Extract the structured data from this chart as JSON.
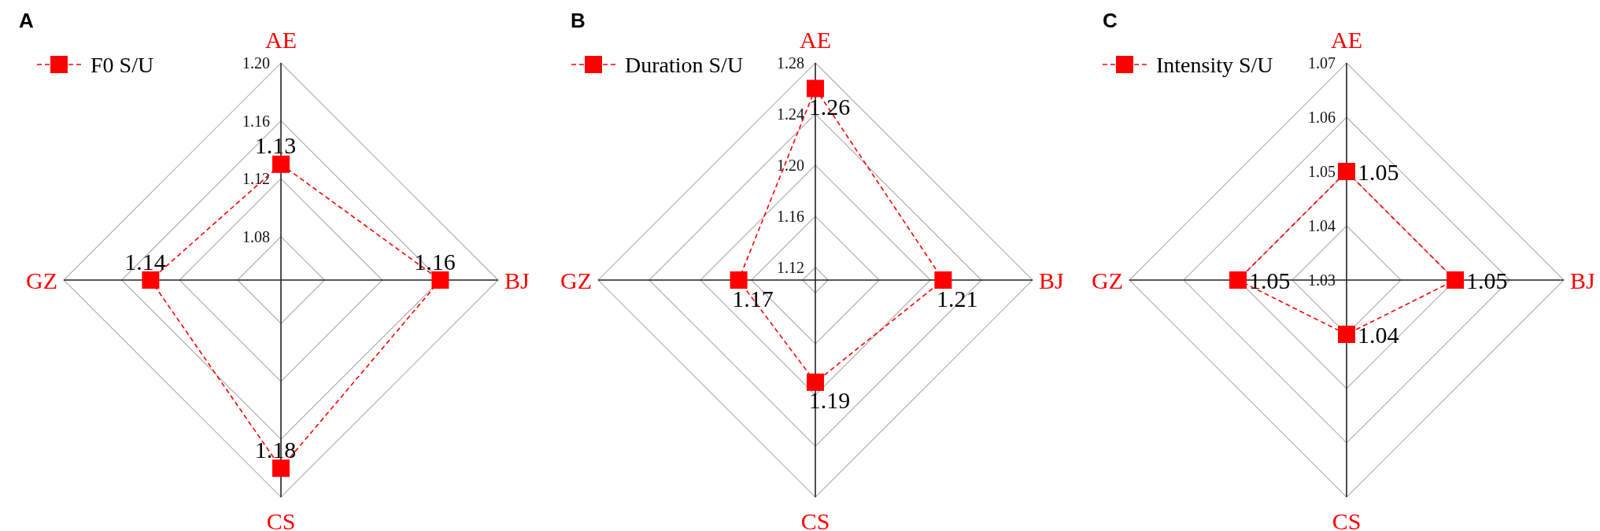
{
  "chart_data": [
    {
      "type": "radar",
      "title": "A",
      "categories": [
        "AE",
        "BJ",
        "CS",
        "GZ"
      ],
      "series": [
        {
          "name": "F0 S/U",
          "color": "#ff0000",
          "values": [
            1.13,
            1.16,
            1.18,
            1.14
          ]
        }
      ],
      "ylim": [
        1.05,
        1.2
      ],
      "yticks": [
        1.08,
        1.12,
        1.16,
        {
          "value": 1.2,
          "label": "1.20"
        }
      ],
      "grid": true,
      "legend": "top left",
      "marker": "square",
      "line_style": "dashed",
      "data_labels": true
    },
    {
      "type": "radar",
      "title": "B",
      "categories": [
        "AE",
        "BJ",
        "CS",
        "GZ"
      ],
      "series": [
        {
          "name": "Duration S/U",
          "color": "#ff0000",
          "values": [
            1.26,
            1.21,
            1.19,
            1.17
          ]
        }
      ],
      "ylim": [
        1.11,
        1.28
      ],
      "yticks": [
        1.12,
        1.16,
        {
          "value": 1.2,
          "label": "1.20"
        },
        1.24,
        1.28
      ],
      "grid": true,
      "legend": "top left",
      "marker": "square",
      "line_style": "dashed",
      "data_labels": true
    },
    {
      "type": "radar",
      "title": "C",
      "categories": [
        "AE",
        "BJ",
        "CS",
        "GZ"
      ],
      "series": [
        {
          "name": "Intensity S/U",
          "color": "#ff0000",
          "values": [
            1.05,
            1.05,
            1.04,
            1.05
          ]
        }
      ],
      "ylim": [
        1.03,
        1.07
      ],
      "yticks": [
        1.03,
        1.04,
        1.05,
        1.06,
        1.07
      ],
      "grid": true,
      "legend": "top left",
      "marker": "square",
      "line_style": "dashed",
      "data_labels": true
    }
  ]
}
